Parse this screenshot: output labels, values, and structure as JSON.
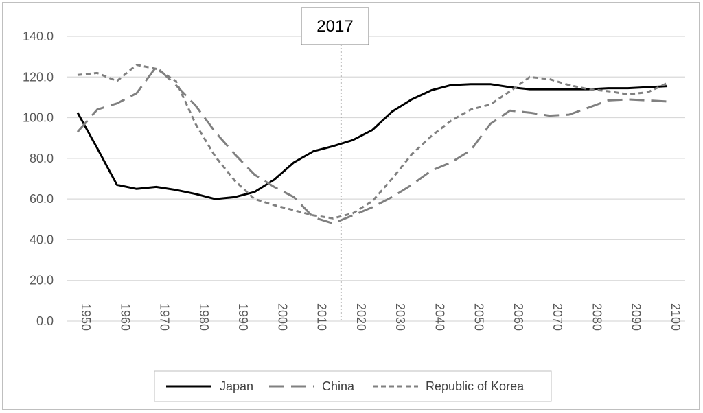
{
  "chart_data": {
    "type": "line",
    "x": [
      1950,
      1955,
      1960,
      1965,
      1970,
      1975,
      1980,
      1985,
      1990,
      1995,
      2000,
      2005,
      2010,
      2015,
      2020,
      2025,
      2030,
      2035,
      2040,
      2045,
      2050,
      2055,
      2060,
      2065,
      2070,
      2075,
      2080,
      2085,
      2090,
      2095,
      2100
    ],
    "x_ticks": [
      1950,
      1960,
      1970,
      1980,
      1990,
      2000,
      2010,
      2020,
      2030,
      2040,
      2050,
      2060,
      2070,
      2080,
      2090,
      2100
    ],
    "y_ticks": [
      "0.0",
      "20.0",
      "40.0",
      "60.0",
      "80.0",
      "100.0",
      "120.0",
      "140.0"
    ],
    "ylim": [
      0,
      140
    ],
    "grid": "horizontal",
    "legend_position": "bottom",
    "annotation": {
      "label": "2017",
      "x": 2017
    },
    "series": [
      {
        "name": "Japan",
        "color": "#000000",
        "dash": "solid",
        "values": [
          102.5,
          85,
          67,
          65,
          66,
          64.5,
          62.5,
          60,
          61,
          63.5,
          69.5,
          78,
          83.5,
          86,
          89,
          94,
          103,
          109,
          113.5,
          116,
          116.5,
          116.5,
          115,
          114,
          114,
          114,
          114,
          114.5,
          114.5,
          115,
          115.5
        ]
      },
      {
        "name": "China",
        "color": "#808080",
        "dash": "long",
        "values": [
          93,
          104,
          107,
          112,
          125,
          116,
          106,
          93,
          82,
          72,
          66,
          61,
          51,
          48,
          52,
          56,
          61,
          67,
          74,
          78,
          84,
          97,
          103.5,
          102.5,
          101,
          101.5,
          105,
          108.5,
          109,
          108.5,
          108
        ]
      },
      {
        "name": "Republic of Korea",
        "color": "#808080",
        "dash": "short",
        "values": [
          121,
          122,
          118,
          126,
          124,
          118,
          97,
          81,
          69,
          60,
          57,
          54.5,
          52,
          50.5,
          53,
          59,
          70,
          82,
          91,
          98.5,
          104,
          106.5,
          113,
          120,
          119,
          116,
          114,
          113,
          111.5,
          112.5,
          117
        ]
      }
    ]
  }
}
